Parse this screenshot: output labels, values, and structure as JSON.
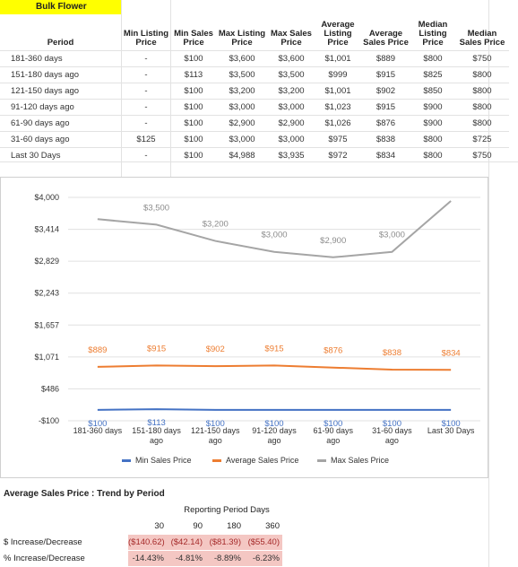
{
  "sheet": {
    "title": "Bulk Flower",
    "columns": [
      "Period",
      "Min Listing Price",
      "Min Sales Price",
      "Max Listing Price",
      "Max Sales Price",
      "Average Listing Price",
      "Average Sales Price",
      "Median Listing Price",
      "Median Sales Price"
    ],
    "rows": [
      [
        "181-360 days",
        "-",
        "$100",
        "$3,600",
        "$3,600",
        "$1,001",
        "$889",
        "$800",
        "$750"
      ],
      [
        "151-180 days ago",
        "-",
        "$113",
        "$3,500",
        "$3,500",
        "$999",
        "$915",
        "$825",
        "$800"
      ],
      [
        "121-150 days ago",
        "-",
        "$100",
        "$3,200",
        "$3,200",
        "$1,001",
        "$902",
        "$850",
        "$800"
      ],
      [
        "91-120 days ago",
        "-",
        "$100",
        "$3,000",
        "$3,000",
        "$1,023",
        "$915",
        "$900",
        "$800"
      ],
      [
        "61-90 days ago",
        "-",
        "$100",
        "$2,900",
        "$2,900",
        "$1,026",
        "$876",
        "$900",
        "$800"
      ],
      [
        "31-60 days ago",
        "$125",
        "$100",
        "$3,000",
        "$3,000",
        "$975",
        "$838",
        "$800",
        "$725"
      ],
      [
        "Last 30 Days",
        "-",
        "$100",
        "$4,988",
        "$3,935",
        "$972",
        "$834",
        "$800",
        "$750"
      ]
    ]
  },
  "chart_data": {
    "type": "line",
    "categories": [
      "181-360 days",
      "151-180 days ago",
      "121-150 days ago",
      "91-120 days ago",
      "61-90 days ago",
      "31-60 days ago",
      "Last 30 Days"
    ],
    "category_lines": [
      [
        "181-360 days"
      ],
      [
        "151-180 days",
        "ago"
      ],
      [
        "121-150 days",
        "ago"
      ],
      [
        "91-120 days",
        "ago"
      ],
      [
        "61-90 days",
        "ago"
      ],
      [
        "31-60 days",
        "ago"
      ],
      [
        "Last 30 Days"
      ]
    ],
    "y_ticks": [
      "$4,000",
      "$3,414",
      "$2,829",
      "$2,243",
      "$1,657",
      "$1,071",
      "$486",
      "-$100"
    ],
    "ylim": [
      -100,
      4000
    ],
    "series": [
      {
        "name": "Min Sales Price",
        "color": "#4472c4",
        "values": [
          100,
          113,
          100,
          100,
          100,
          100,
          100
        ],
        "labels": [
          "$100",
          "$113",
          "$100",
          "$100",
          "$100",
          "$100",
          "$100"
        ],
        "label_color": "#4472c4"
      },
      {
        "name": "Average Sales Price",
        "color": "#ed7d31",
        "values": [
          889,
          915,
          902,
          915,
          876,
          838,
          834
        ],
        "labels": [
          "$889",
          "$915",
          "$902",
          "$915",
          "$876",
          "$838",
          "$834"
        ],
        "label_color": "#ed7d31"
      },
      {
        "name": "Max Sales Price",
        "color": "#a5a5a5",
        "values": [
          3600,
          3500,
          3200,
          3000,
          2900,
          3000,
          3935
        ],
        "labels": [
          "",
          "$3,500",
          "$3,200",
          "$3,000",
          "$2,900",
          "$3,000",
          ""
        ],
        "label_color": "#8c8c8c"
      }
    ]
  },
  "trend": {
    "title": "Average Sales Price : Trend by Period",
    "header": "Reporting Period Days",
    "periods": [
      "30",
      "90",
      "180",
      "360"
    ],
    "dollar_label": "$ Increase/Decrease",
    "dollar_values": [
      "($140.62)",
      "($42.14)",
      "($81.39)",
      "($55.40)"
    ],
    "pct_label": "% Increase/Decrease",
    "pct_values": [
      "-14.43%",
      "-4.81%",
      "-8.89%",
      "-6.23%"
    ]
  }
}
